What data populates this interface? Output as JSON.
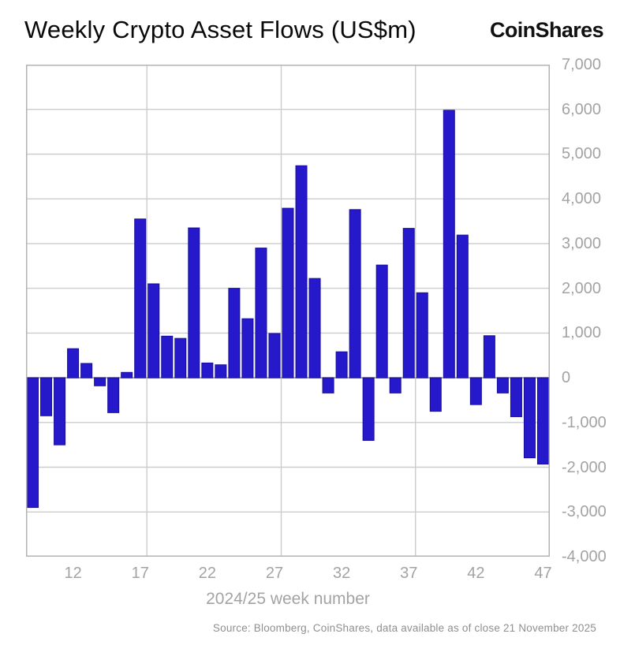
{
  "header": {
    "title": "Weekly Crypto Asset Flows (US$m)",
    "logo": "CoinShares"
  },
  "footer": {
    "source": "Source: Bloomberg, CoinShares, data available as of close 21 November 2025"
  },
  "chart_data": {
    "type": "bar",
    "title": "Weekly Crypto Asset Flows (US$m)",
    "xlabel": "2024/25 week number",
    "ylabel": "",
    "ylim": [
      -4000,
      7000
    ],
    "y_tick_interval": 1000,
    "y_tick_labels": [
      "7,000",
      "6,000",
      "5,000",
      "4,000",
      "3,000",
      "2,000",
      "1,000",
      "0",
      "-1,000",
      "-2,000",
      "-3,000",
      "-4,000"
    ],
    "x_tick_weeks": [
      12,
      17,
      22,
      27,
      32,
      37,
      42,
      47
    ],
    "x_tick_labels": [
      "12",
      "17",
      "22",
      "27",
      "32",
      "37",
      "42",
      "47"
    ],
    "vertical_gridlines_after_weeks": [
      17,
      27,
      37
    ],
    "grid": true,
    "legend": false,
    "bar_color": "#2519cb",
    "bar_border_color": "#170e9b",
    "weeks": [
      9,
      10,
      11,
      12,
      13,
      14,
      15,
      16,
      17,
      18,
      19,
      20,
      21,
      22,
      23,
      24,
      25,
      26,
      27,
      28,
      29,
      30,
      31,
      32,
      33,
      34,
      35,
      36,
      37,
      38,
      39,
      40,
      41,
      42,
      43,
      44,
      45,
      46,
      47
    ],
    "values": [
      -2900,
      -850,
      -1500,
      650,
      320,
      -180,
      -780,
      120,
      3550,
      2100,
      930,
      880,
      3350,
      330,
      290,
      2000,
      1320,
      2900,
      990,
      3790,
      4740,
      2220,
      -340,
      580,
      3760,
      -1400,
      2520,
      -340,
      3340,
      1900,
      -750,
      5980,
      3190,
      -600,
      940,
      -340,
      -870,
      -1790,
      -1930
    ]
  }
}
